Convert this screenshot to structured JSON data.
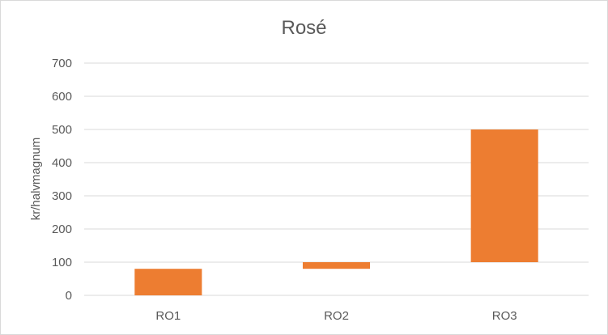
{
  "chart_data": {
    "type": "bar",
    "subtype": "floating-bar",
    "title": "Rosé",
    "xlabel": "",
    "ylabel": "kr/halvmagnum",
    "categories": [
      "RO1",
      "RO2",
      "RO3"
    ],
    "ranges": [
      {
        "low": 0,
        "high": 80
      },
      {
        "low": 80,
        "high": 100
      },
      {
        "low": 100,
        "high": 500
      }
    ],
    "ylim": [
      0,
      700
    ],
    "yticks": [
      0,
      100,
      200,
      300,
      400,
      500,
      600,
      700
    ],
    "grid": true,
    "legend": "none",
    "bar_color": "#ED7D31"
  }
}
